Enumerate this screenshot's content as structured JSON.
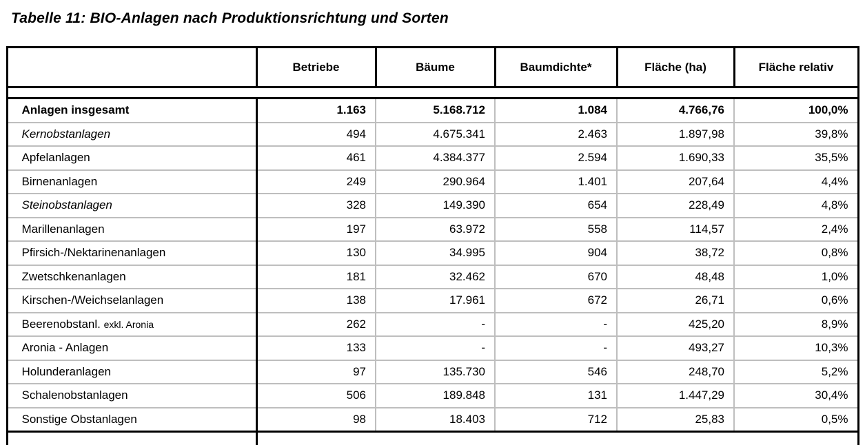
{
  "page": {
    "title": "Tabelle 11: BIO-Anlagen nach Produktionsrichtung und Sorten"
  },
  "colors": {
    "grid_line": "#bebebe",
    "border": "#000000",
    "text": "#000000",
    "background": "#ffffff"
  },
  "table": {
    "columns": [
      "",
      "Betriebe",
      "Bäume",
      "Baumdichte*",
      "Fläche (ha)",
      "Fläche relativ"
    ],
    "rows": [
      {
        "label": "Anlagen insgesamt",
        "style": "bold",
        "values": [
          "1.163",
          "5.168.712",
          "1.084",
          "4.766,76",
          "100,0%"
        ]
      },
      {
        "label": "Kernobstanlagen",
        "style": "italic",
        "values": [
          "494",
          "4.675.341",
          "2.463",
          "1.897,98",
          "39,8%"
        ]
      },
      {
        "label": "Apfelanlagen",
        "style": "",
        "values": [
          "461",
          "4.384.377",
          "2.594",
          "1.690,33",
          "35,5%"
        ]
      },
      {
        "label": "Birnenanlagen",
        "style": "",
        "values": [
          "249",
          "290.964",
          "1.401",
          "207,64",
          "4,4%"
        ]
      },
      {
        "label": "Steinobstanlagen",
        "style": "italic",
        "values": [
          "328",
          "149.390",
          "654",
          "228,49",
          "4,8%"
        ]
      },
      {
        "label": "Marillenanlagen",
        "style": "",
        "values": [
          "197",
          "63.972",
          "558",
          "114,57",
          "2,4%"
        ]
      },
      {
        "label": "Pfirsich-/Nektarinenanlagen",
        "style": "",
        "values": [
          "130",
          "34.995",
          "904",
          "38,72",
          "0,8%"
        ]
      },
      {
        "label": "Zwetschkenanlagen",
        "style": "",
        "values": [
          "181",
          "32.462",
          "670",
          "48,48",
          "1,0%"
        ]
      },
      {
        "label": "Kirschen-/Weichselanlagen",
        "style": "",
        "values": [
          "138",
          "17.961",
          "672",
          "26,71",
          "0,6%"
        ]
      },
      {
        "label": "Beerenobstanl.",
        "label_suffix": "exkl. Aronia",
        "style": "",
        "values": [
          "262",
          "-",
          "-",
          "425,20",
          "8,9%"
        ]
      },
      {
        "label": "Aronia - Anlagen",
        "style": "",
        "values": [
          "133",
          "-",
          "-",
          "493,27",
          "10,3%"
        ]
      },
      {
        "label": "Holunderanlagen",
        "style": "",
        "values": [
          "97",
          "135.730",
          "546",
          "248,70",
          "5,2%"
        ]
      },
      {
        "label": "Schalenobstanlagen",
        "style": "",
        "values": [
          "506",
          "189.848",
          "131",
          "1.447,29",
          "30,4%"
        ]
      },
      {
        "label": "Sonstige Obstanlagen",
        "style": "",
        "values": [
          "98",
          "18.403",
          "712",
          "25,83",
          "0,5%"
        ]
      }
    ]
  }
}
